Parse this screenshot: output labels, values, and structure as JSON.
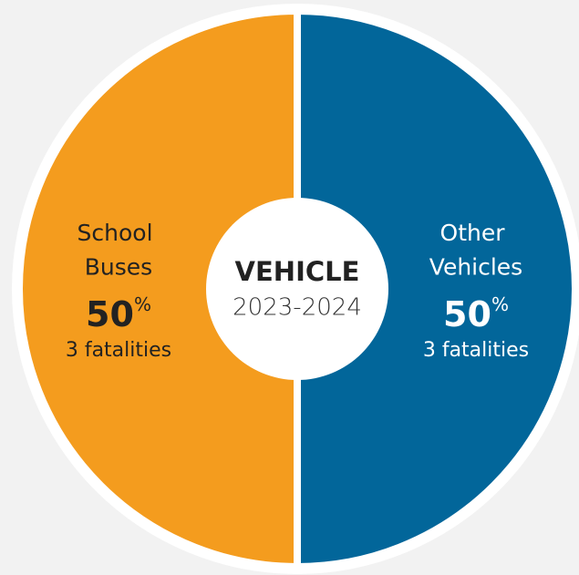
{
  "chart_data": {
    "type": "pie",
    "title": "VEHICLE",
    "subtitle": "2023-2024",
    "categories": [
      "Other Vehicles",
      "School Buses"
    ],
    "values": [
      50,
      50
    ],
    "value_labels": [
      "50%",
      "50%"
    ],
    "details": [
      "3 fatalities",
      "3 fatalities"
    ],
    "colors": [
      "#02669a",
      "#f49c1e"
    ],
    "label_colors": [
      "#ffffff",
      "#222222"
    ]
  }
}
